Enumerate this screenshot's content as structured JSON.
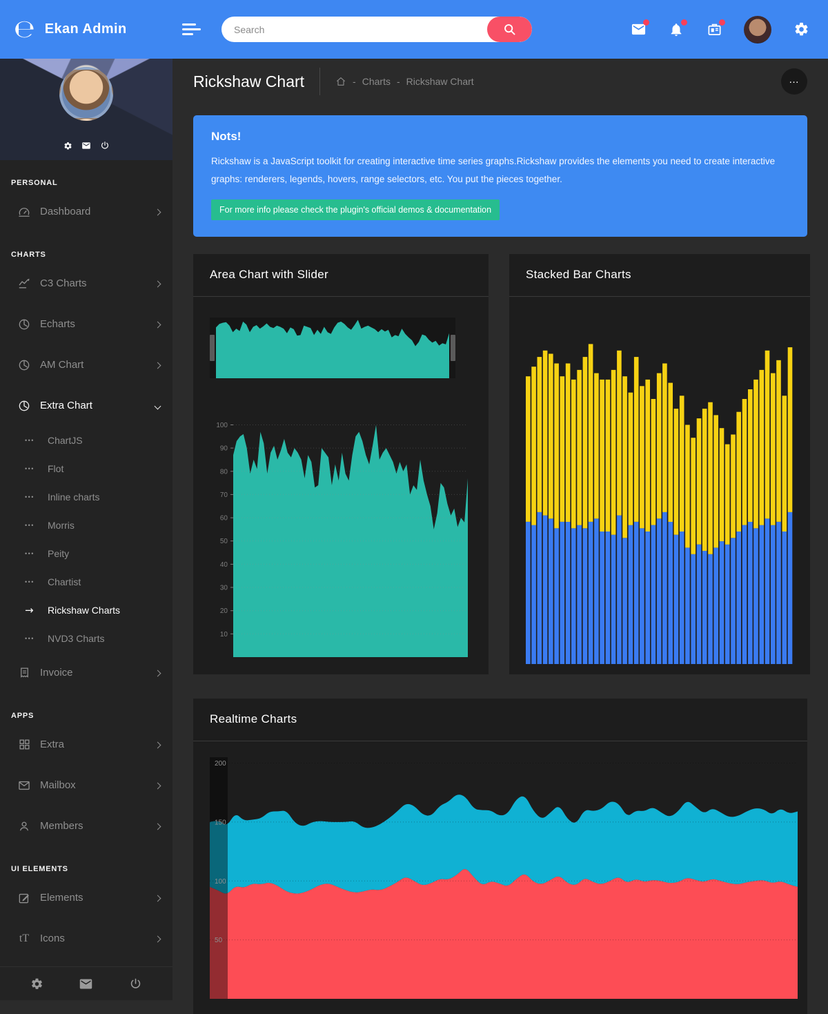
{
  "topbar": {
    "brand": "Ekan Admin",
    "logo_glyph": "℮",
    "search_placeholder": "Search"
  },
  "icons": {
    "search": "magnifier",
    "messages": "envelope",
    "notifications": "bell",
    "apps": "briefcase",
    "settings": "gear",
    "power": "power",
    "home": "house"
  },
  "sidebar": {
    "bullet": "•••",
    "active_arrow": "→",
    "icons_glyph": "tT",
    "sections": [
      {
        "label": "PERSONAL",
        "items": [
          {
            "label": "Dashboard"
          }
        ]
      },
      {
        "label": "CHARTS",
        "items": [
          {
            "label": "C3 Charts"
          },
          {
            "label": "Echarts"
          },
          {
            "label": "AM Chart"
          },
          {
            "label": "Extra Chart",
            "children": [
              {
                "label": "ChartJS"
              },
              {
                "label": "Flot"
              },
              {
                "label": "Inline charts"
              },
              {
                "label": "Morris"
              },
              {
                "label": "Peity"
              },
              {
                "label": "Chartist"
              },
              {
                "label": "Rickshaw Charts"
              },
              {
                "label": "NVD3 Charts"
              }
            ]
          },
          {
            "label": "Invoice"
          }
        ]
      },
      {
        "label": "APPS",
        "items": [
          {
            "label": "Extra"
          },
          {
            "label": "Mailbox"
          },
          {
            "label": "Members"
          }
        ]
      },
      {
        "label": "UI ELEMENTS",
        "items": [
          {
            "label": "Elements"
          },
          {
            "label": "Icons"
          }
        ]
      }
    ]
  },
  "page": {
    "title": "Rickshaw Chart",
    "menu_button": "…",
    "breadcrumb": {
      "sep": "-",
      "items": [
        "Charts",
        "Rickshaw Chart"
      ]
    }
  },
  "notice": {
    "title": "Nots!",
    "body": "Rickshaw is a JavaScript toolkit for creating interactive time series graphs.Rickshaw provides the elements you need to create interactive graphs: renderers, legends, hovers, range selectors, etc. You put the pieces together.",
    "info_prefix": "For more info please check the plugin's official ",
    "link_label": "demos & documentation"
  },
  "colors": {
    "topbar_blue": "#3e87f2",
    "notice_blue": "#3e8af2",
    "green_box": "#27bd8f",
    "accent_red": "#f85066",
    "badge_red": "#f8405a",
    "panel": "#1d1d1d",
    "teal": "#2ab9a8",
    "bar_yellow": "#f7d213",
    "bar_blue": "#3a7bf2",
    "rt_cyan": "#10b1d3",
    "rt_red": "#fd4d55"
  },
  "chart_data": [
    {
      "id": "area-slider",
      "type": "area",
      "title": "Area Chart with Slider",
      "color": "#2ab9a8",
      "ylim": [
        0,
        104
      ],
      "yticks": [
        10,
        20,
        30,
        40,
        50,
        60,
        70,
        80,
        90,
        100
      ],
      "grid": true,
      "legend": "none",
      "values": [
        87,
        93,
        95,
        96,
        90,
        79,
        85,
        81,
        97,
        92,
        79,
        88,
        91,
        85,
        89,
        94,
        88,
        86,
        90,
        88,
        85,
        77,
        87,
        84,
        73,
        74,
        90,
        88,
        86,
        74,
        83,
        76,
        88,
        79,
        76,
        87,
        95,
        97,
        93,
        87,
        83,
        91,
        100,
        85,
        88,
        90,
        87,
        84,
        79,
        84,
        80,
        83,
        70,
        74,
        72,
        85,
        76,
        70,
        65,
        55,
        62,
        75,
        73,
        66,
        61,
        64,
        56,
        60,
        58,
        77
      ],
      "slider_window": [
        0,
        100
      ]
    },
    {
      "id": "stacked-bars",
      "type": "bar",
      "stacked": true,
      "title": "Stacked Bar Charts",
      "ylim": [
        0,
        104
      ],
      "grid": false,
      "legend": "none",
      "series": [
        {
          "name": "bottom-blue",
          "color": "#3a7bf2",
          "values": [
            44,
            43,
            47,
            46,
            45,
            42,
            44,
            44,
            42,
            43,
            42,
            44,
            45,
            41,
            41,
            40,
            46,
            39,
            43,
            44,
            42,
            41,
            43,
            45,
            47,
            44,
            40,
            41,
            36,
            34,
            37,
            35,
            34,
            36,
            38,
            37,
            39,
            41,
            43,
            44,
            42,
            43,
            45,
            43,
            44,
            41,
            47
          ]
        },
        {
          "name": "top-yellow",
          "color": "#f7d213",
          "values": [
            45,
            49,
            48,
            51,
            51,
            51,
            45,
            49,
            46,
            48,
            53,
            55,
            45,
            47,
            47,
            51,
            51,
            50,
            41,
            51,
            44,
            47,
            39,
            45,
            46,
            43,
            39,
            42,
            38,
            36,
            39,
            44,
            47,
            41,
            35,
            31,
            32,
            37,
            39,
            41,
            46,
            48,
            52,
            47,
            50,
            42,
            51
          ]
        }
      ]
    },
    {
      "id": "realtime",
      "type": "area",
      "stacked": true,
      "title": "Realtime Charts",
      "ylim": [
        0,
        205
      ],
      "yticks": [
        50,
        100,
        150,
        200
      ],
      "grid": true,
      "legend": "none",
      "series": [
        {
          "name": "bottom-red",
          "color": "#fd4d55",
          "values": [
            95,
            92,
            88,
            96,
            94,
            98,
            97,
            99,
            96,
            91,
            89,
            90,
            93,
            97,
            98,
            95,
            92,
            90,
            91,
            93,
            92,
            95,
            99,
            104,
            100,
            96,
            98,
            102,
            101,
            105,
            112,
            103,
            96,
            100,
            98,
            95,
            102,
            107,
            99,
            97,
            101,
            105,
            98,
            96,
            103,
            99,
            97,
            100,
            104,
            98,
            102,
            99,
            101,
            100,
            98,
            99,
            103,
            101,
            99,
            102,
            100,
            98,
            97,
            99,
            100,
            101,
            98,
            100,
            97,
            95
          ]
        },
        {
          "name": "top-cyan",
          "color": "#10b1d3",
          "values": [
            55,
            60,
            58,
            62,
            57,
            54,
            56,
            60,
            63,
            69,
            60,
            56,
            57,
            54,
            52,
            55,
            58,
            61,
            54,
            52,
            56,
            58,
            60,
            62,
            64,
            60,
            57,
            62,
            66,
            69,
            60,
            58,
            64,
            60,
            57,
            62,
            68,
            66,
            60,
            55,
            57,
            60,
            54,
            52,
            58,
            60,
            64,
            68,
            62,
            56,
            58,
            60,
            62,
            58,
            56,
            60,
            66,
            62,
            58,
            60,
            58,
            56,
            58,
            60,
            62,
            60,
            58,
            62,
            60,
            64
          ]
        }
      ]
    }
  ]
}
